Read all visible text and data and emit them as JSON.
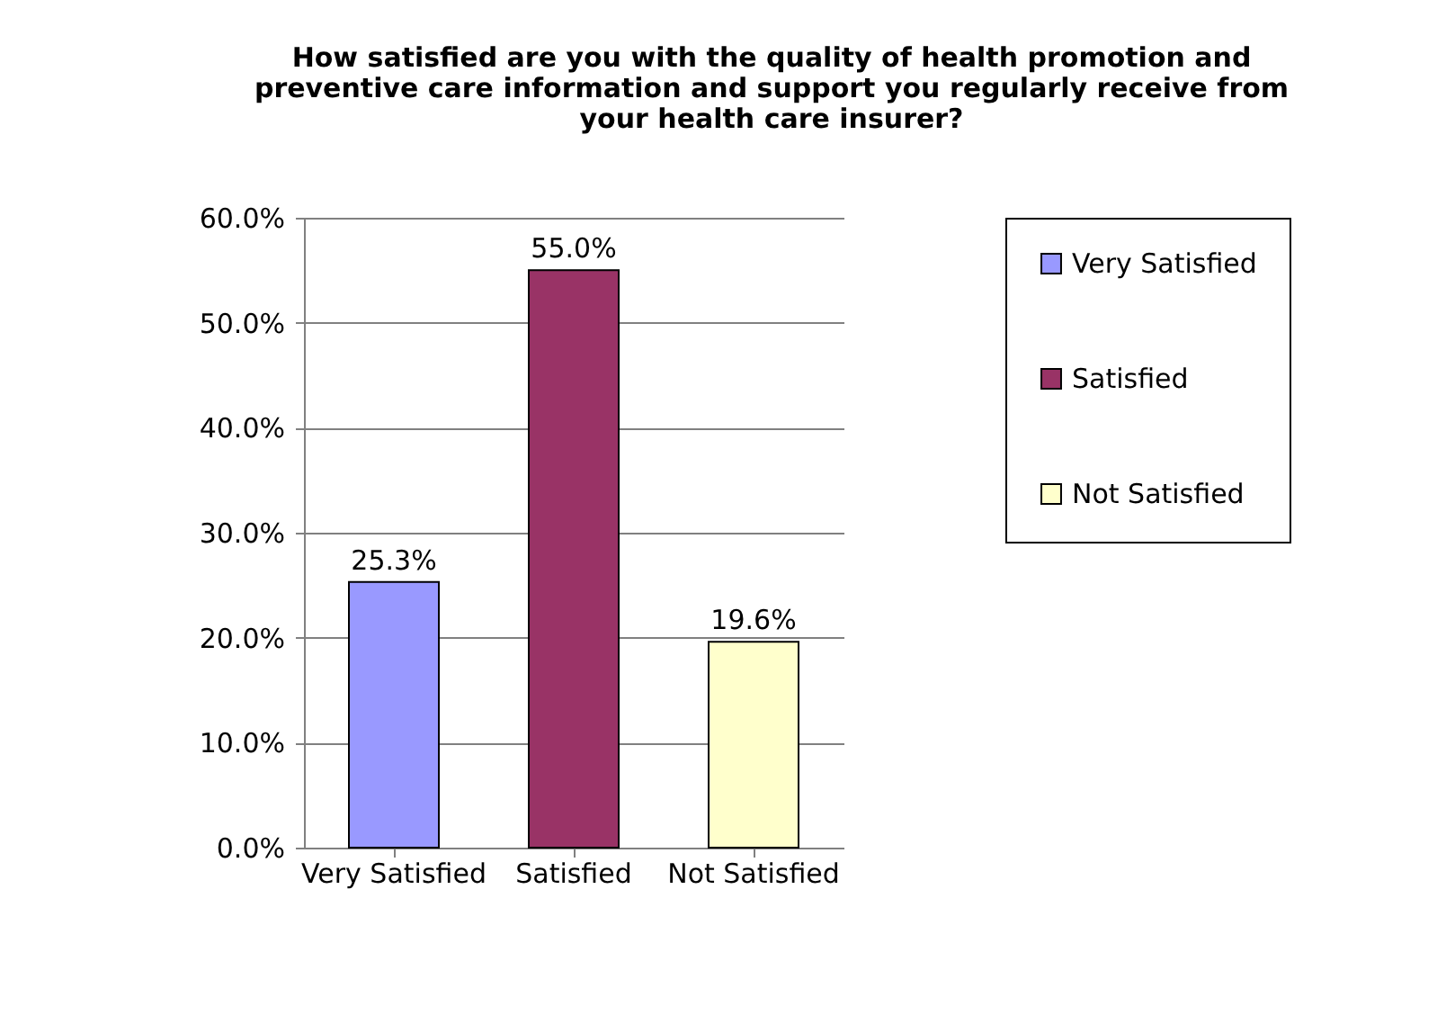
{
  "chart_data": {
    "type": "bar",
    "title": "How satisfied are you with the quality of health promotion and preventive care information and support you regularly receive from your health care insurer?",
    "categories": [
      "Very Satisfied",
      "Satisfied",
      "Not Satisfied"
    ],
    "series": [
      {
        "name": "Very Satisfied",
        "color": "#9999ff",
        "values": [
          25.3,
          null,
          null
        ],
        "value_labels": [
          "25.3%",
          null,
          null
        ]
      },
      {
        "name": "Satisfied",
        "color": "#993366",
        "values": [
          null,
          55.0,
          null
        ],
        "value_labels": [
          null,
          "55.0%",
          null
        ]
      },
      {
        "name": "Not Satisfied",
        "color": "#ffffcc",
        "values": [
          null,
          null,
          19.6
        ],
        "value_labels": [
          null,
          null,
          "19.6%"
        ]
      }
    ],
    "ylim": [
      0,
      60
    ],
    "yticks": [
      {
        "value": 0,
        "label": "0.0%"
      },
      {
        "value": 10,
        "label": "10.0%"
      },
      {
        "value": 20,
        "label": "20.0%"
      },
      {
        "value": 30,
        "label": "30.0%"
      },
      {
        "value": 40,
        "label": "40.0%"
      },
      {
        "value": 50,
        "label": "50.0%"
      },
      {
        "value": 60,
        "label": "60.0%"
      }
    ],
    "grid": "y",
    "legend": "right"
  }
}
